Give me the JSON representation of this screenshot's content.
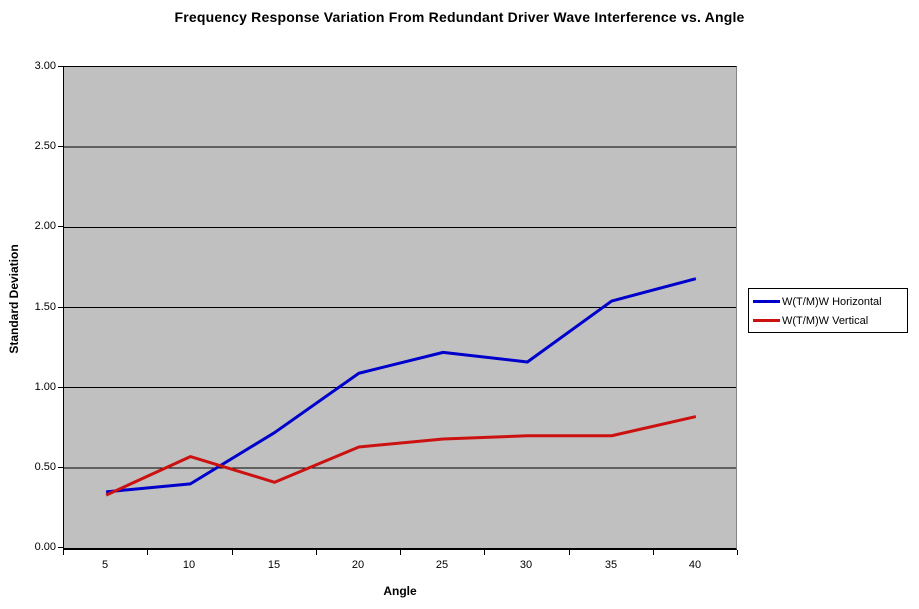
{
  "chart_data": {
    "type": "line",
    "title": "Frequency Response Variation From Redundant Driver Wave Interference vs. Angle",
    "xlabel": "Angle",
    "ylabel": "Standard Deviation",
    "categories": [
      "5",
      "10",
      "15",
      "20",
      "25",
      "30",
      "35",
      "40"
    ],
    "y_ticks": [
      "0.00",
      "0.50",
      "1.00",
      "1.50",
      "2.00",
      "2.50",
      "3.00"
    ],
    "ylim": [
      0,
      3
    ],
    "grid": true,
    "gridline_interval": 0.5,
    "plot_bg_color": "#c0c0c0",
    "gridline_color": "#000000",
    "legend_position": "right",
    "series": [
      {
        "name": "W(T/M)W Horizontal",
        "color": "#0000cc",
        "values": [
          0.35,
          0.4,
          0.72,
          1.09,
          1.22,
          1.16,
          1.54,
          1.68
        ]
      },
      {
        "name": "W(T/M)W Vertical",
        "color": "#cc1111",
        "values": [
          0.33,
          0.57,
          0.41,
          0.63,
          0.68,
          0.7,
          0.7,
          0.82
        ]
      }
    ]
  }
}
